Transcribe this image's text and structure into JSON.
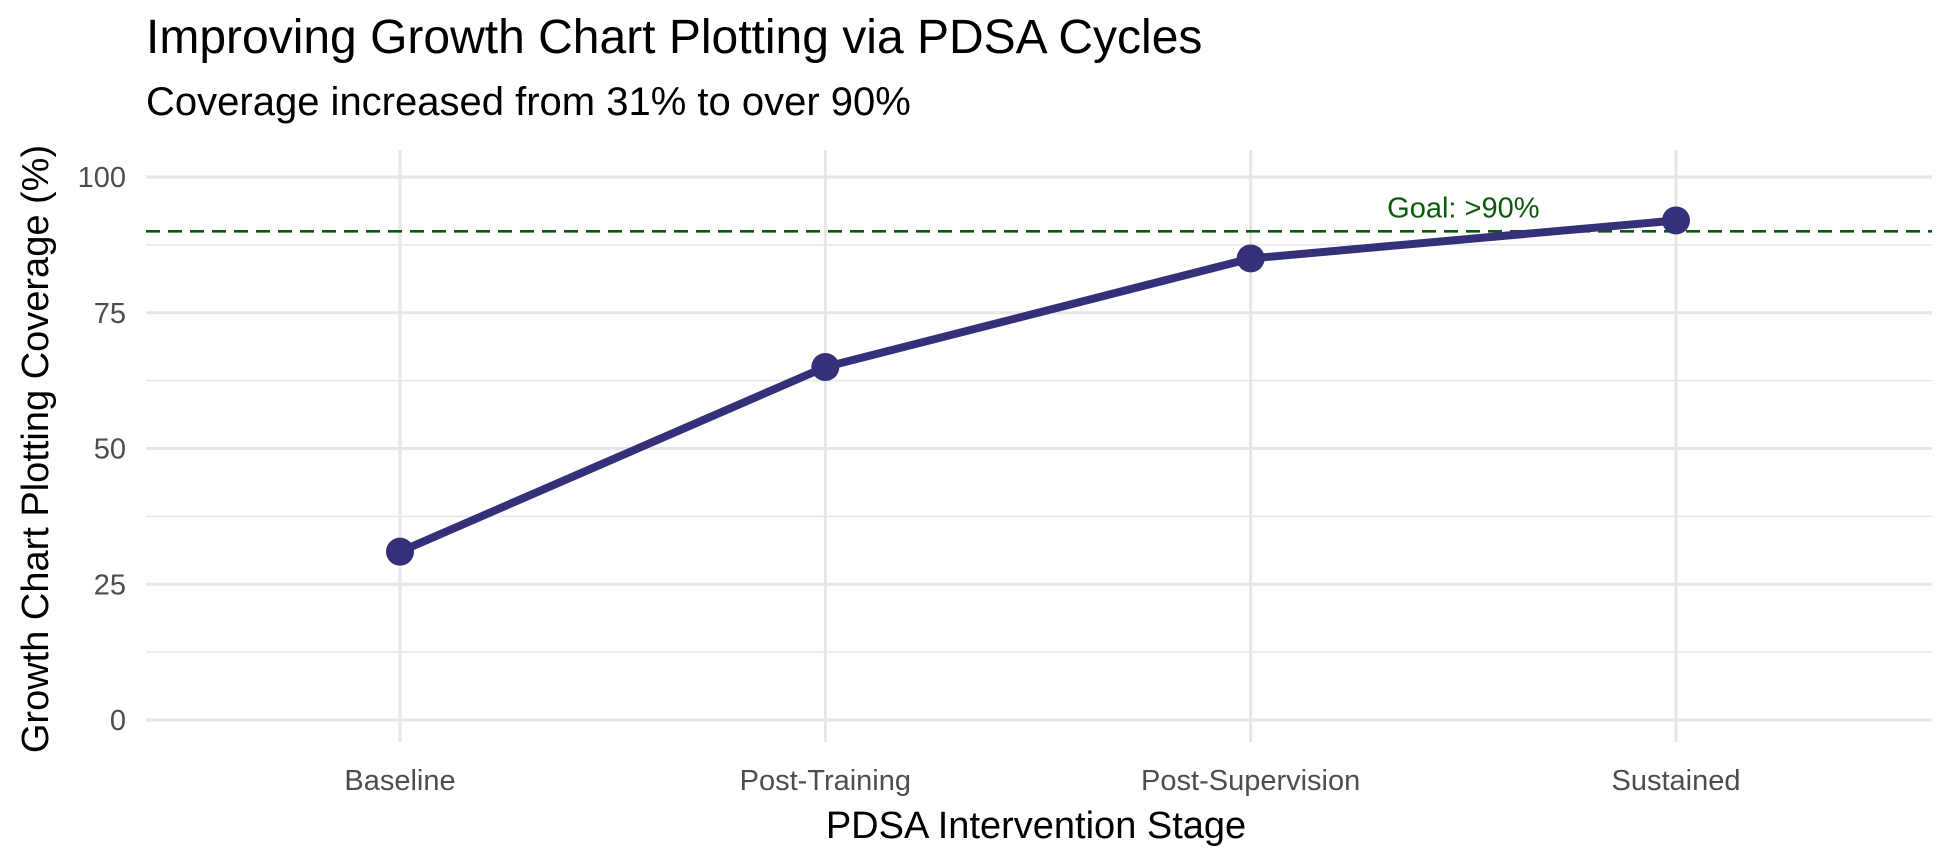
{
  "chart_data": {
    "type": "line",
    "title": "Improving Growth Chart Plotting via PDSA Cycles",
    "subtitle": "Coverage increased from 31% to over 90%",
    "xlabel": "PDSA Intervention Stage",
    "ylabel": "Growth Chart Plotting Coverage (%)",
    "categories": [
      "Baseline",
      "Post-Training",
      "Post-Supervision",
      "Sustained"
    ],
    "values": [
      31,
      65,
      85,
      92
    ],
    "ylim": [
      0,
      100
    ],
    "yticks": [
      0,
      25,
      50,
      75,
      100
    ],
    "grid": true,
    "legend": "none",
    "reference_line": {
      "value": 90,
      "label": "Goal: >90%",
      "style": "dashed"
    },
    "colors": {
      "series": "#35307a",
      "goal": "#0b5a0b",
      "grid": "#e6e6e6"
    }
  }
}
